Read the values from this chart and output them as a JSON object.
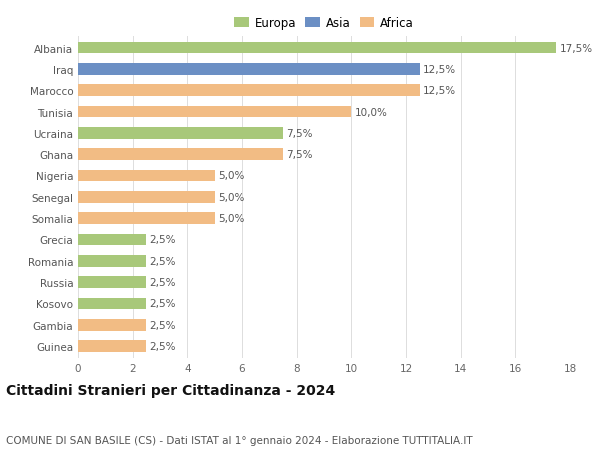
{
  "countries": [
    "Albania",
    "Iraq",
    "Marocco",
    "Tunisia",
    "Ucraina",
    "Ghana",
    "Nigeria",
    "Senegal",
    "Somalia",
    "Grecia",
    "Romania",
    "Russia",
    "Kosovo",
    "Gambia",
    "Guinea"
  ],
  "values": [
    17.5,
    12.5,
    12.5,
    10.0,
    7.5,
    7.5,
    5.0,
    5.0,
    5.0,
    2.5,
    2.5,
    2.5,
    2.5,
    2.5,
    2.5
  ],
  "continents": [
    "Europa",
    "Asia",
    "Africa",
    "Africa",
    "Europa",
    "Africa",
    "Africa",
    "Africa",
    "Africa",
    "Europa",
    "Europa",
    "Europa",
    "Europa",
    "Africa",
    "Africa"
  ],
  "colors": {
    "Europa": "#a8c87a",
    "Asia": "#6b8fc4",
    "Africa": "#f2bc84"
  },
  "legend_labels": [
    "Europa",
    "Asia",
    "Africa"
  ],
  "title": "Cittadini Stranieri per Cittadinanza - 2024",
  "subtitle": "COMUNE DI SAN BASILE (CS) - Dati ISTAT al 1° gennaio 2024 - Elaborazione TUTTITALIA.IT",
  "xlim": [
    0,
    18
  ],
  "xticks": [
    0,
    2,
    4,
    6,
    8,
    10,
    12,
    14,
    16,
    18
  ],
  "bar_height": 0.55,
  "background_color": "#ffffff",
  "grid_color": "#dddddd",
  "title_fontsize": 10,
  "subtitle_fontsize": 7.5,
  "label_fontsize": 7.5,
  "tick_fontsize": 7.5,
  "legend_fontsize": 8.5
}
